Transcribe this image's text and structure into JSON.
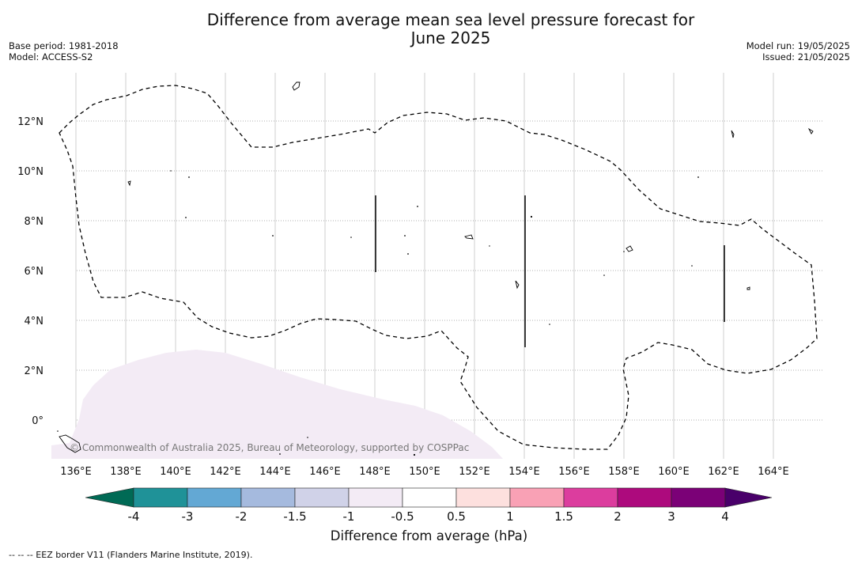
{
  "title": {
    "line1": "Difference from average mean sea level pressure forecast for",
    "line2": "June 2025"
  },
  "meta": {
    "base_period": "Base period: 1981-2018",
    "model": "Model: ACCESS-S2",
    "model_run": "Model run: 19/05/2025",
    "issued": "Issued: 21/05/2025"
  },
  "copyright": "© Commonwealth of Australia 2025, Bureau of Meteorology, supported by COSPPac",
  "footer": "--  --  -- EEZ border V11 (Flanders Marine Institute, 2019).",
  "map": {
    "lon_range": [
      135,
      165.2
    ],
    "lat_range": [
      -1.5,
      14
    ],
    "lon_ticks": [
      136,
      138,
      140,
      142,
      144,
      146,
      148,
      150,
      152,
      154,
      156,
      158,
      160,
      162,
      164
    ],
    "lon_labels": [
      "136°E",
      "138°E",
      "140°E",
      "142°E",
      "144°E",
      "146°E",
      "148°E",
      "150°E",
      "152°E",
      "154°E",
      "156°E",
      "158°E",
      "160°E",
      "162°E",
      "164°E"
    ],
    "lat_ticks": [
      0,
      2,
      4,
      6,
      8,
      10,
      12
    ],
    "lat_labels": [
      "0°",
      "2°N",
      "4°N",
      "6°N",
      "8°N",
      "10°N",
      "12°N"
    ],
    "anomaly_fill_color": "#f3ebf5",
    "eez_border_color": "#000000"
  },
  "colorbar": {
    "label": "Difference from average (hPa)",
    "ticks": [
      "-4",
      "-3",
      "-2",
      "-1.5",
      "-1",
      "-0.5",
      "0.5",
      "1",
      "1.5",
      "2",
      "3",
      "4"
    ],
    "colors": [
      "#1f9298",
      "#63a8d4",
      "#a5bade",
      "#d0d2e8",
      "#f3ebf5",
      "#ffffff",
      "#fde0de",
      "#f9a1b5",
      "#dc3d9e",
      "#ad0a7d",
      "#7b0177"
    ],
    "under_color": "#006a55",
    "over_color": "#49006a"
  }
}
